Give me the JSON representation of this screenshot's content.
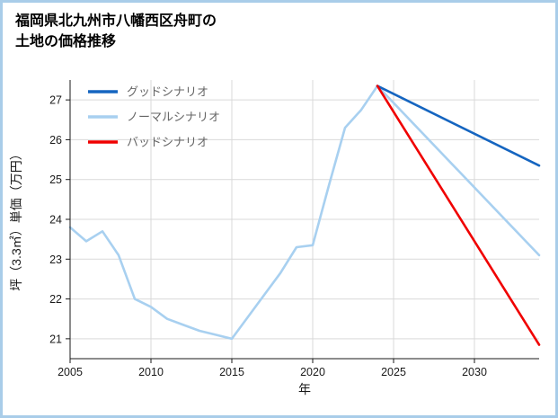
{
  "title": {
    "line1": "福岡県北九州市八幡西区舟町の",
    "line2": "土地の価格推移"
  },
  "frame_color": "#a9cde9",
  "chart_data": {
    "type": "line",
    "title": "福岡県北九州市八幡西区舟町の土地の価格推移",
    "xlabel": "年",
    "ylabel": "坪（3.3㎡）単価（万円）",
    "xlim": [
      2005,
      2034
    ],
    "ylim": [
      20.5,
      27.5
    ],
    "xticks": [
      2005,
      2010,
      2015,
      2020,
      2025,
      2030
    ],
    "yticks": [
      21,
      22,
      23,
      24,
      25,
      26,
      27
    ],
    "grid": true,
    "legend_position": "upper-left",
    "draw_order": [
      1,
      0,
      2
    ],
    "series": [
      {
        "name": "グッドシナリオ",
        "color": "#1565c0",
        "x": [
          2024,
          2034
        ],
        "y": [
          27.35,
          25.35
        ]
      },
      {
        "name": "ノーマルシナリオ",
        "color": "#a8d0f0",
        "x": [
          2005,
          2006,
          2007,
          2008,
          2009,
          2010,
          2011,
          2012,
          2013,
          2014,
          2015,
          2016,
          2017,
          2018,
          2019,
          2020,
          2021,
          2022,
          2023,
          2024,
          2034
        ],
        "y": [
          23.8,
          23.45,
          23.7,
          23.1,
          22.0,
          21.8,
          21.5,
          21.35,
          21.2,
          21.1,
          21.0,
          21.55,
          22.1,
          22.65,
          23.3,
          23.35,
          24.85,
          26.3,
          26.75,
          27.35,
          23.1
        ]
      },
      {
        "name": "バッドシナリオ",
        "color": "#f00000",
        "x": [
          2024,
          2034
        ],
        "y": [
          27.35,
          20.85
        ]
      }
    ]
  }
}
